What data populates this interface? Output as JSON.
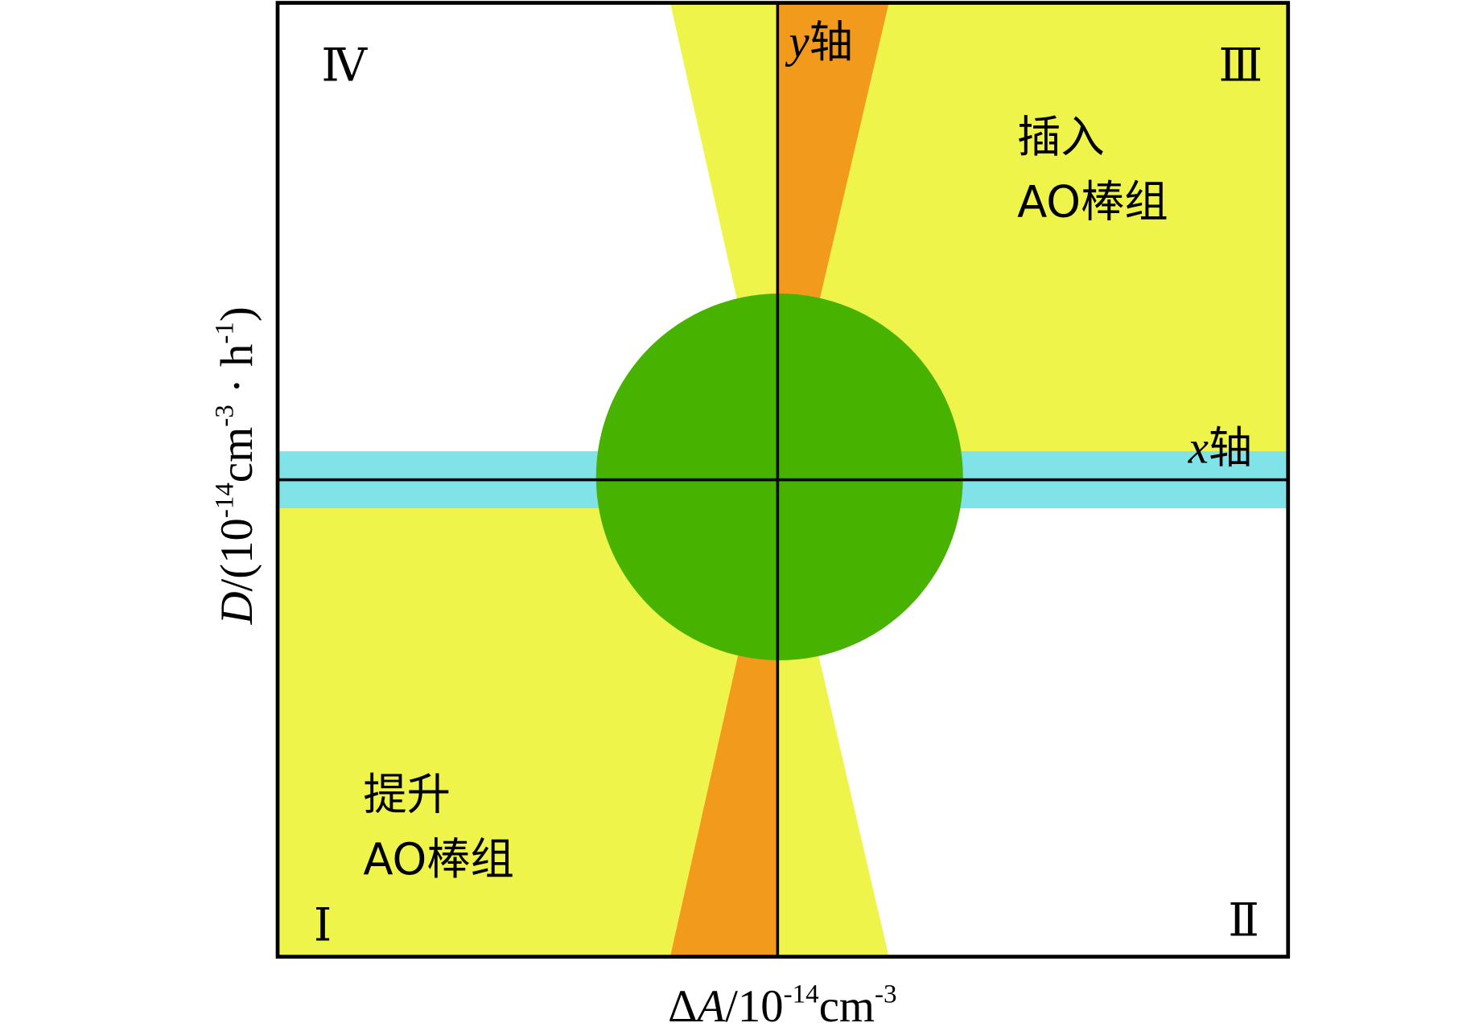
{
  "quadrants": {
    "q1": "Ⅰ",
    "q2": "Ⅱ",
    "q3": "Ⅲ",
    "q4": "Ⅳ"
  },
  "y_axis_label": {
    "var": "y",
    "text": "轴"
  },
  "x_axis_label": {
    "var": "x",
    "text": "轴"
  },
  "insert_region": [
    "插入",
    "AO棒组"
  ],
  "lift_region": [
    "提升",
    "AO棒组"
  ],
  "x_title": {
    "delta": "Δ",
    "var": "A",
    "text": "/10",
    "exp": "-14",
    "unit": "cm",
    "unit_exp": "-3"
  },
  "y_title": {
    "var": "D",
    "text": "/(10",
    "exp": "-14",
    "unit": "cm",
    "unit_exp": "-3",
    "sep": " · h",
    "h_exp": "-1",
    "close": ")"
  }
}
